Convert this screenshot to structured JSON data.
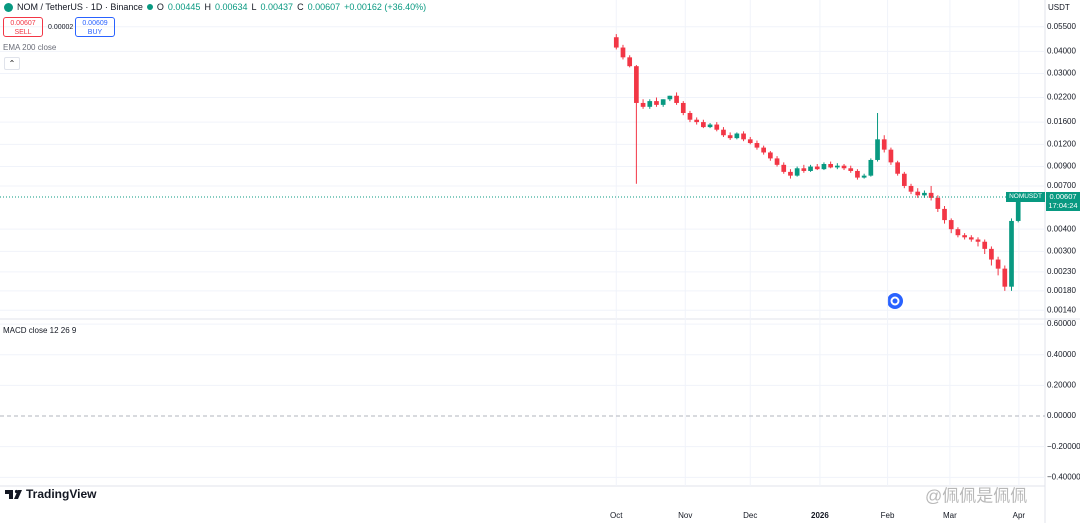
{
  "ui": {
    "symbol": "NOM / TetherUS · 1D · Binance",
    "o_label": "O",
    "o": "0.00445",
    "h_label": "H",
    "h": "0.00634",
    "l_label": "L",
    "l": "0.00437",
    "c_label": "C",
    "c": "0.00607",
    "change": "+0.00162 (+36.40%)",
    "sell_price": "0.00607",
    "sell": "SELL",
    "spread": "0.00002",
    "buy_price": "0.00609",
    "buy": "BUY",
    "ema": "EMA 200 close",
    "currency": "USDT",
    "last_symbol": "NOMUSDT",
    "last_price": "0.00607",
    "countdown": "17:04:24",
    "logo": "TradingView",
    "watermark": "@佩佩是佩佩"
  },
  "chart_data": [
    {
      "type": "candlestick",
      "log_scale": true,
      "grid": true,
      "up_color": "#089981",
      "down_color": "#f23645",
      "xlim": [
        -92,
        64
      ],
      "xticks": [
        {
          "value": 0,
          "label": "Oct"
        },
        {
          "value": 10.3,
          "label": "Nov"
        },
        {
          "value": 20,
          "label": "Dec"
        },
        {
          "value": 30.4,
          "label": "2026"
        },
        {
          "value": 40.5,
          "label": "Feb"
        },
        {
          "value": 49.8,
          "label": "Mar"
        },
        {
          "value": 60.1,
          "label": "Apr"
        }
      ],
      "ylim": [
        0.0013,
        0.06
      ],
      "yticks": [
        {
          "value": 0.055,
          "label": "0.05500"
        },
        {
          "value": 0.04,
          "label": "0.04000"
        },
        {
          "value": 0.03,
          "label": "0.03000"
        },
        {
          "value": 0.022,
          "label": "0.02200"
        },
        {
          "value": 0.016,
          "label": "0.01600"
        },
        {
          "value": 0.012,
          "label": "0.01200"
        },
        {
          "value": 0.009,
          "label": "0.00900"
        },
        {
          "value": 0.007,
          "label": "0.00700"
        },
        {
          "value": 0.004,
          "label": "0.00400"
        },
        {
          "value": 0.003,
          "label": "0.00300"
        },
        {
          "value": 0.0023,
          "label": "0.00230"
        },
        {
          "value": 0.0018,
          "label": "0.00180"
        },
        {
          "value": 0.0014,
          "label": "0.00140"
        }
      ],
      "open": [
        0.048,
        0.042,
        0.037,
        0.033,
        0.0205,
        0.0195,
        0.021,
        0.02,
        0.0215,
        0.0225,
        0.0205,
        0.018,
        0.0165,
        0.016,
        0.015,
        0.0155,
        0.0145,
        0.0135,
        0.013,
        0.0138,
        0.0128,
        0.0122,
        0.0115,
        0.0108,
        0.01,
        0.0092,
        0.0084,
        0.008,
        0.0088,
        0.0085,
        0.009,
        0.0087,
        0.0093,
        0.0089,
        0.0091,
        0.0088,
        0.0085,
        0.0078,
        0.008,
        0.0098,
        0.0128,
        0.0112,
        0.0095,
        0.0082,
        0.007,
        0.0065,
        0.0062,
        0.0064,
        0.006,
        0.0052,
        0.0045,
        0.004,
        0.0037,
        0.0036,
        0.0035,
        0.0034,
        0.0031,
        0.0027,
        0.0024,
        0.0019,
        0.00445
      ],
      "high": [
        0.05,
        0.0435,
        0.038,
        0.0335,
        0.0215,
        0.0215,
        0.022,
        0.0215,
        0.0225,
        0.0235,
        0.021,
        0.0185,
        0.017,
        0.0165,
        0.0158,
        0.016,
        0.015,
        0.014,
        0.014,
        0.0142,
        0.0132,
        0.0126,
        0.0118,
        0.011,
        0.0103,
        0.0095,
        0.0087,
        0.009,
        0.0092,
        0.0092,
        0.0093,
        0.0095,
        0.0096,
        0.0094,
        0.0093,
        0.0091,
        0.0087,
        0.0082,
        0.01,
        0.018,
        0.0135,
        0.0115,
        0.0097,
        0.0084,
        0.0072,
        0.0068,
        0.0066,
        0.007,
        0.0062,
        0.0054,
        0.0046,
        0.0041,
        0.0038,
        0.0037,
        0.0036,
        0.0035,
        0.0032,
        0.0028,
        0.0025,
        0.0046,
        0.00634
      ],
      "low": [
        0.041,
        0.036,
        0.0325,
        0.0072,
        0.019,
        0.019,
        0.0195,
        0.0195,
        0.021,
        0.02,
        0.0175,
        0.016,
        0.0155,
        0.0148,
        0.0148,
        0.0142,
        0.0132,
        0.0127,
        0.0128,
        0.0125,
        0.012,
        0.0112,
        0.0105,
        0.0097,
        0.009,
        0.0082,
        0.0077,
        0.0079,
        0.0083,
        0.0084,
        0.0086,
        0.0086,
        0.0088,
        0.0087,
        0.0086,
        0.0083,
        0.0076,
        0.0077,
        0.0079,
        0.0096,
        0.0108,
        0.0092,
        0.008,
        0.0068,
        0.0063,
        0.006,
        0.006,
        0.0058,
        0.005,
        0.0043,
        0.0038,
        0.0036,
        0.0035,
        0.0034,
        0.0032,
        0.0029,
        0.0025,
        0.0022,
        0.0018,
        0.0018,
        0.00437
      ],
      "close": [
        0.042,
        0.037,
        0.033,
        0.0205,
        0.0195,
        0.021,
        0.02,
        0.0215,
        0.0225,
        0.0205,
        0.018,
        0.0165,
        0.016,
        0.015,
        0.0155,
        0.0145,
        0.0135,
        0.013,
        0.0138,
        0.0128,
        0.0122,
        0.0115,
        0.0108,
        0.01,
        0.0092,
        0.0084,
        0.008,
        0.0088,
        0.0085,
        0.009,
        0.0087,
        0.0093,
        0.0089,
        0.0091,
        0.0088,
        0.0085,
        0.0078,
        0.008,
        0.0098,
        0.0128,
        0.0112,
        0.0095,
        0.0082,
        0.007,
        0.0065,
        0.0062,
        0.0064,
        0.006,
        0.0052,
        0.0045,
        0.004,
        0.0037,
        0.0036,
        0.0035,
        0.0034,
        0.0031,
        0.0027,
        0.0024,
        0.0019,
        0.00445,
        0.00607
      ]
    },
    {
      "type": "macd",
      "title": "MACD close 12 26 9",
      "ylim": [
        -0.45,
        0.62
      ],
      "yticks": [
        {
          "value": 0.6,
          "label": "0.60000"
        },
        {
          "value": 0.4,
          "label": "0.40000"
        },
        {
          "value": 0.2,
          "label": "0.20000"
        },
        {
          "value": 0,
          "label": "0.00000"
        },
        {
          "value": -0.2,
          "label": "−0.20000"
        },
        {
          "value": -0.4,
          "label": "−0.40000"
        }
      ]
    }
  ]
}
